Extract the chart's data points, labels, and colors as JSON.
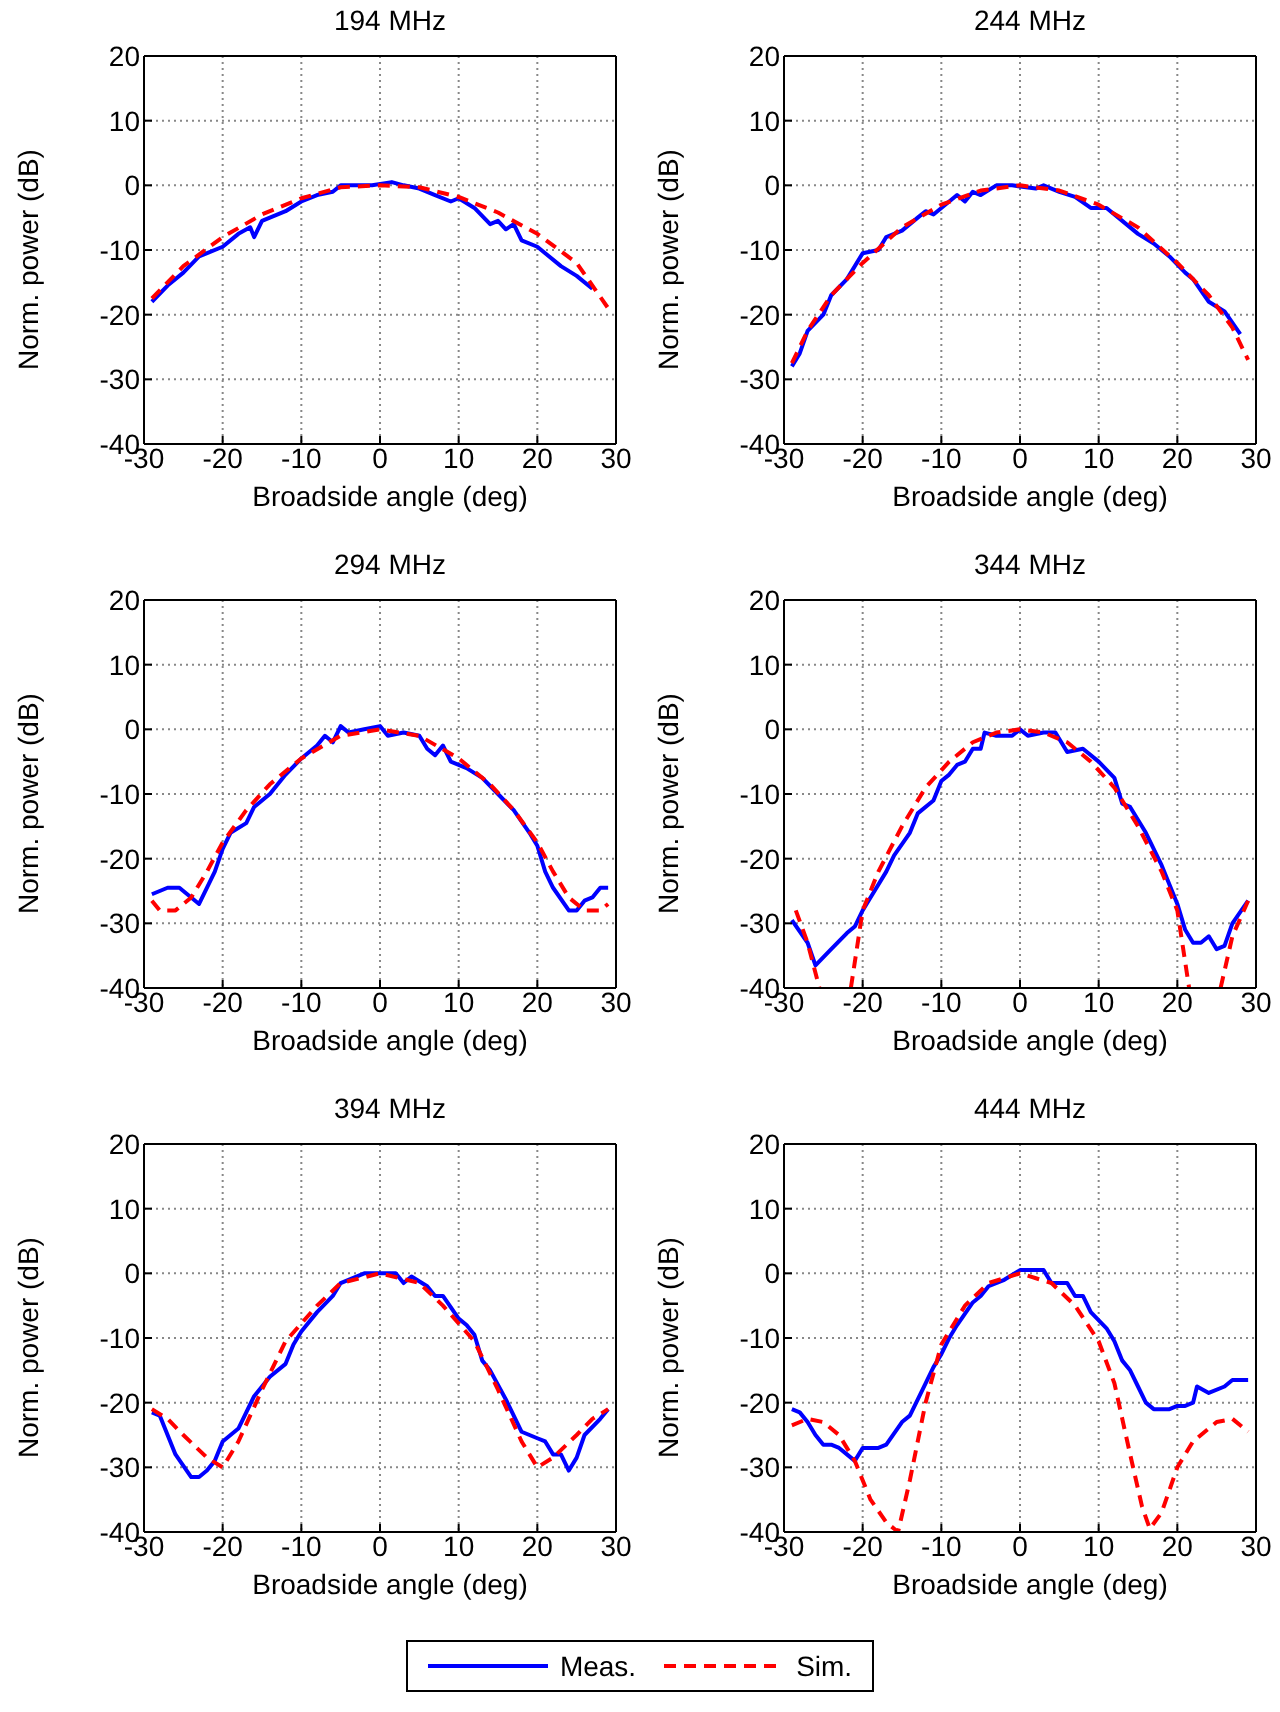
{
  "chart_data": [
    {
      "type": "line",
      "title": "194 MHz",
      "xlabel": "Broadside angle (deg)",
      "ylabel": "Norm. power (dB)",
      "xlim": [
        -30,
        30
      ],
      "xticks": [
        -30,
        -20,
        -10,
        0,
        10,
        20,
        30
      ],
      "ylim": [
        -40,
        20
      ],
      "yticks": [
        -40,
        -30,
        -20,
        -10,
        0,
        10,
        20
      ],
      "grid": true,
      "legend": "bottom",
      "series": [
        {
          "name": "Meas.",
          "color": "#0000ff",
          "line_style": "solid",
          "x": [
            -29,
            -27,
            -25,
            -23,
            -20,
            -18,
            -16.5,
            -16,
            -15,
            -13,
            -12,
            -10,
            -8,
            -6,
            -5,
            -3,
            -1,
            1.5,
            3,
            5,
            7,
            9,
            10,
            12,
            14,
            15,
            16,
            17,
            18,
            20,
            21,
            23,
            25,
            27
          ],
          "values": [
            -18,
            -15.5,
            -13.5,
            -11,
            -9.5,
            -7.5,
            -6.5,
            -8,
            -5.5,
            -4.5,
            -4,
            -2.5,
            -1.5,
            -1,
            0,
            0,
            0,
            0.5,
            0,
            -0.5,
            -1.5,
            -2.5,
            -2,
            -3.5,
            -6,
            -5.5,
            -6.8,
            -6,
            -8.5,
            -9.5,
            -10.5,
            -12.5,
            -14,
            -16
          ]
        },
        {
          "name": "Sim.",
          "color": "#ff0000",
          "line_style": "dashed",
          "x": [
            -29,
            -25,
            -20,
            -15,
            -10,
            -5,
            0,
            5,
            10,
            15,
            20,
            25,
            29
          ],
          "values": [
            -17.5,
            -12.5,
            -8,
            -4.5,
            -2,
            -0.3,
            0,
            -0.3,
            -1.8,
            -4.2,
            -7.5,
            -12,
            -19
          ]
        }
      ]
    },
    {
      "type": "line",
      "title": "244 MHz",
      "xlabel": "Broadside angle (deg)",
      "ylabel": "Norm. power (dB)",
      "xlim": [
        -30,
        30
      ],
      "xticks": [
        -30,
        -20,
        -10,
        0,
        10,
        20,
        30
      ],
      "ylim": [
        -40,
        20
      ],
      "yticks": [
        -40,
        -30,
        -20,
        -10,
        0,
        10,
        20
      ],
      "grid": true,
      "series": [
        {
          "color": "#0000ff",
          "line_style": "solid",
          "x": [
            -29,
            -28,
            -27,
            -25,
            -24,
            -22,
            -20,
            -18,
            -17,
            -15,
            -13,
            -12,
            -11,
            -10,
            -8,
            -7,
            -6,
            -5,
            -3,
            -1,
            2,
            3,
            5,
            7,
            9,
            11,
            13,
            15,
            17,
            19,
            21,
            22,
            24,
            26,
            28
          ],
          "values": [
            -28,
            -26,
            -22.5,
            -20,
            -17,
            -14.5,
            -10.5,
            -10,
            -8,
            -7,
            -5,
            -4,
            -4.5,
            -3.5,
            -1.5,
            -2.5,
            -1,
            -1.5,
            0,
            0,
            -0.5,
            0,
            -1,
            -1.8,
            -3.5,
            -3.5,
            -5.5,
            -7.5,
            -9,
            -11,
            -13.5,
            -14.5,
            -18,
            -19.5,
            -23
          ]
        },
        {
          "color": "#ff0000",
          "line_style": "dashed",
          "x": [
            -29,
            -27,
            -24,
            -20,
            -15,
            -10,
            -5,
            0,
            5,
            10,
            15,
            20,
            24,
            27,
            29
          ],
          "values": [
            -27.5,
            -22.5,
            -17,
            -12,
            -6.5,
            -3,
            -0.8,
            0,
            -0.8,
            -3,
            -6.5,
            -12,
            -17,
            -22,
            -27
          ]
        }
      ]
    },
    {
      "type": "line",
      "title": "294 MHz",
      "xlabel": "Broadside angle (deg)",
      "ylabel": "Norm. power (dB)",
      "xlim": [
        -30,
        30
      ],
      "xticks": [
        -30,
        -20,
        -10,
        0,
        10,
        20,
        30
      ],
      "ylim": [
        -40,
        20
      ],
      "yticks": [
        -40,
        -30,
        -20,
        -10,
        0,
        10,
        20
      ],
      "grid": true,
      "series": [
        {
          "color": "#0000ff",
          "line_style": "solid",
          "x": [
            -29,
            -27,
            -25.5,
            -23,
            -21,
            -20,
            -19,
            -17,
            -16,
            -14,
            -12,
            -10,
            -8,
            -7,
            -6,
            -5,
            -4,
            -2,
            0,
            1,
            3,
            5,
            6,
            7,
            8,
            9,
            11,
            13,
            15,
            17,
            19,
            20,
            21,
            22,
            24,
            25,
            26,
            27,
            28,
            29
          ],
          "values": [
            -25.5,
            -24.5,
            -24.5,
            -27,
            -22,
            -18.5,
            -16,
            -14.5,
            -12,
            -10,
            -7,
            -4.5,
            -2.5,
            -1,
            -2,
            0.5,
            -0.5,
            0,
            0.5,
            -1,
            -0.5,
            -1,
            -3,
            -4,
            -2.5,
            -5,
            -6,
            -7.5,
            -10,
            -12.5,
            -16,
            -18,
            -22,
            -24.5,
            -28,
            -28,
            -26.5,
            -26,
            -24.5,
            -24.5
          ]
        },
        {
          "color": "#ff0000",
          "line_style": "dashed",
          "x": [
            -29,
            -28,
            -26,
            -24,
            -22,
            -20,
            -17,
            -14,
            -10,
            -5,
            0,
            5,
            10,
            14,
            17,
            20,
            22,
            24,
            26,
            28,
            29
          ],
          "values": [
            -26.5,
            -28,
            -28,
            -26,
            -22,
            -17.5,
            -12.5,
            -8.5,
            -4.5,
            -1,
            0,
            -1,
            -4.5,
            -8.5,
            -12.5,
            -17.5,
            -22,
            -26,
            -28,
            -28,
            -27
          ]
        }
      ]
    },
    {
      "type": "line",
      "title": "344 MHz",
      "xlabel": "Broadside angle (deg)",
      "ylabel": "Norm. power (dB)",
      "xlim": [
        -30,
        30
      ],
      "xticks": [
        -30,
        -20,
        -10,
        0,
        10,
        20,
        30
      ],
      "ylim": [
        -40,
        20
      ],
      "yticks": [
        -40,
        -30,
        -20,
        -10,
        0,
        10,
        20
      ],
      "grid": true,
      "series": [
        {
          "color": "#0000ff",
          "line_style": "solid",
          "x": [
            -29,
            -27,
            -26,
            -24,
            -22,
            -21,
            -20,
            -19,
            -17,
            -16,
            -14,
            -13,
            -11,
            -10,
            -9,
            -8,
            -7,
            -6,
            -5,
            -4.5,
            -3,
            -1,
            0,
            1,
            3,
            4.5,
            6,
            8,
            10,
            12,
            13,
            14,
            16,
            18,
            20,
            21,
            22,
            23,
            24,
            25,
            26,
            27,
            29
          ],
          "values": [
            -29.5,
            -33,
            -36.5,
            -34,
            -31.5,
            -30.5,
            -28,
            -26,
            -22,
            -19.5,
            -16,
            -13,
            -11,
            -8,
            -7,
            -5.5,
            -5,
            -3,
            -3,
            -0.5,
            -1,
            -1,
            0,
            -1,
            -0.5,
            -0.5,
            -3.5,
            -3,
            -5,
            -7.5,
            -11.5,
            -12,
            -16,
            -21,
            -27,
            -31,
            -33,
            -33,
            -32,
            -34,
            -33.5,
            -30,
            -26.5
          ]
        },
        {
          "color": "#ff0000",
          "line_style": "dashed",
          "x": [
            -28.5,
            -27,
            -25.5,
            -23.5,
            -21.5,
            -20,
            -18,
            -15,
            -12,
            -9,
            -6,
            -3,
            0,
            3,
            6,
            9,
            12,
            15,
            18,
            20,
            21.5,
            23.5,
            25.5,
            27,
            29
          ],
          "values": [
            -28,
            -33,
            -40,
            null,
            -40,
            -28,
            -22,
            -15,
            -9,
            -5,
            -2,
            -0.5,
            0,
            -0.5,
            -2,
            -5,
            -9,
            -15,
            -22,
            -28,
            -40,
            null,
            -40,
            -32,
            -26.5
          ]
        }
      ]
    },
    {
      "type": "line",
      "title": "394 MHz",
      "xlabel": "Broadside angle (deg)",
      "ylabel": "Norm. power (dB)",
      "xlim": [
        -30,
        30
      ],
      "xticks": [
        -30,
        -20,
        -10,
        0,
        10,
        20,
        30
      ],
      "ylim": [
        -40,
        20
      ],
      "yticks": [
        -40,
        -30,
        -20,
        -10,
        0,
        10,
        20
      ],
      "grid": true,
      "series": [
        {
          "color": "#0000ff",
          "line_style": "solid",
          "x": [
            -29,
            -28,
            -26,
            -24,
            -23,
            -22,
            -21,
            -20,
            -18,
            -17,
            -16,
            -14,
            -12,
            -11,
            -10,
            -8,
            -6,
            -5,
            -4,
            -3,
            -2,
            0,
            2,
            3,
            4,
            6,
            7,
            8,
            10,
            11,
            12,
            13,
            14,
            16,
            17,
            18,
            20,
            21,
            22,
            23,
            24,
            25,
            26,
            28,
            29
          ],
          "values": [
            -21.5,
            -22,
            -28,
            -31.5,
            -31.5,
            -30.5,
            -29,
            -26,
            -24,
            -21.5,
            -19,
            -16,
            -14,
            -11,
            -9,
            -6,
            -3.5,
            -1.5,
            -1,
            -0.5,
            0,
            0,
            0,
            -1.5,
            -0.5,
            -2,
            -3.5,
            -3.5,
            -7,
            -8,
            -9.5,
            -13.5,
            -15,
            -19.5,
            -22,
            -24.5,
            -25.5,
            -26,
            -28,
            -28,
            -30.5,
            -28.5,
            -25,
            -22.5,
            -21
          ]
        },
        {
          "color": "#ff0000",
          "line_style": "dashed",
          "x": [
            -29,
            -27,
            -25,
            -22,
            -20,
            -18,
            -15,
            -12,
            -8,
            -5,
            0,
            5,
            8,
            12,
            15,
            18,
            20,
            22,
            25,
            27,
            29
          ],
          "values": [
            -21,
            -22.5,
            -25,
            -28.5,
            -30,
            -26,
            -18,
            -10.5,
            -5,
            -1.5,
            0,
            -1.5,
            -5,
            -10.5,
            -18,
            -26,
            -30,
            -28.5,
            -25,
            -22.5,
            -21
          ]
        }
      ]
    },
    {
      "type": "line",
      "title": "444 MHz",
      "xlabel": "Broadside angle (deg)",
      "ylabel": "Norm. power (dB)",
      "xlim": [
        -30,
        30
      ],
      "xticks": [
        -30,
        -20,
        -10,
        0,
        10,
        20,
        30
      ],
      "ylim": [
        -40,
        20
      ],
      "yticks": [
        -40,
        -30,
        -20,
        -10,
        0,
        10,
        20
      ],
      "grid": true,
      "series": [
        {
          "color": "#0000ff",
          "line_style": "solid",
          "x": [
            -29,
            -28,
            -27,
            -26,
            -25,
            -24,
            -23,
            -22,
            -21,
            -20,
            -18,
            -17,
            -15,
            -14,
            -12,
            -11,
            -10,
            -9,
            -8,
            -6,
            -5,
            -4,
            -2,
            0,
            2,
            3,
            4,
            6,
            7,
            8,
            9,
            11,
            12,
            13,
            14,
            15,
            16,
            17,
            19,
            20,
            21,
            22,
            22.5,
            24,
            26,
            27,
            29
          ],
          "values": [
            -21,
            -21.5,
            -23,
            -25,
            -26.5,
            -26.5,
            -27,
            -28,
            -29,
            -27,
            -27,
            -26.5,
            -23,
            -22,
            -17,
            -14.5,
            -12.5,
            -10,
            -8,
            -4.5,
            -3.5,
            -2,
            -1,
            0.5,
            0.5,
            0.5,
            -1.5,
            -1.5,
            -3.5,
            -3.5,
            -6,
            -8.5,
            -10.5,
            -13.5,
            -15,
            -17.5,
            -20,
            -21,
            -21,
            -20.5,
            -20.5,
            -20,
            -17.5,
            -18.5,
            -17.5,
            -16.5,
            -16.5
          ]
        },
        {
          "color": "#ff0000",
          "line_style": "dashed",
          "x": [
            -29,
            -27,
            -25,
            -23,
            -21,
            -19,
            -17,
            -16,
            -15.5,
            -14,
            -12,
            -10,
            -7,
            -4,
            0,
            4,
            7,
            10,
            12,
            14,
            15.5,
            16.5,
            18,
            20,
            22,
            25,
            27,
            29
          ],
          "values": [
            -23.5,
            -22.5,
            -23,
            -25,
            -29,
            -35,
            -38.5,
            -39.5,
            -40,
            -32,
            -20,
            -11,
            -5,
            -1.5,
            0,
            -1.5,
            -5,
            -10.5,
            -17,
            -28,
            -36,
            -39.5,
            -37,
            -30,
            -26,
            -23,
            -22.5,
            -24.5
          ]
        }
      ]
    }
  ]
}
